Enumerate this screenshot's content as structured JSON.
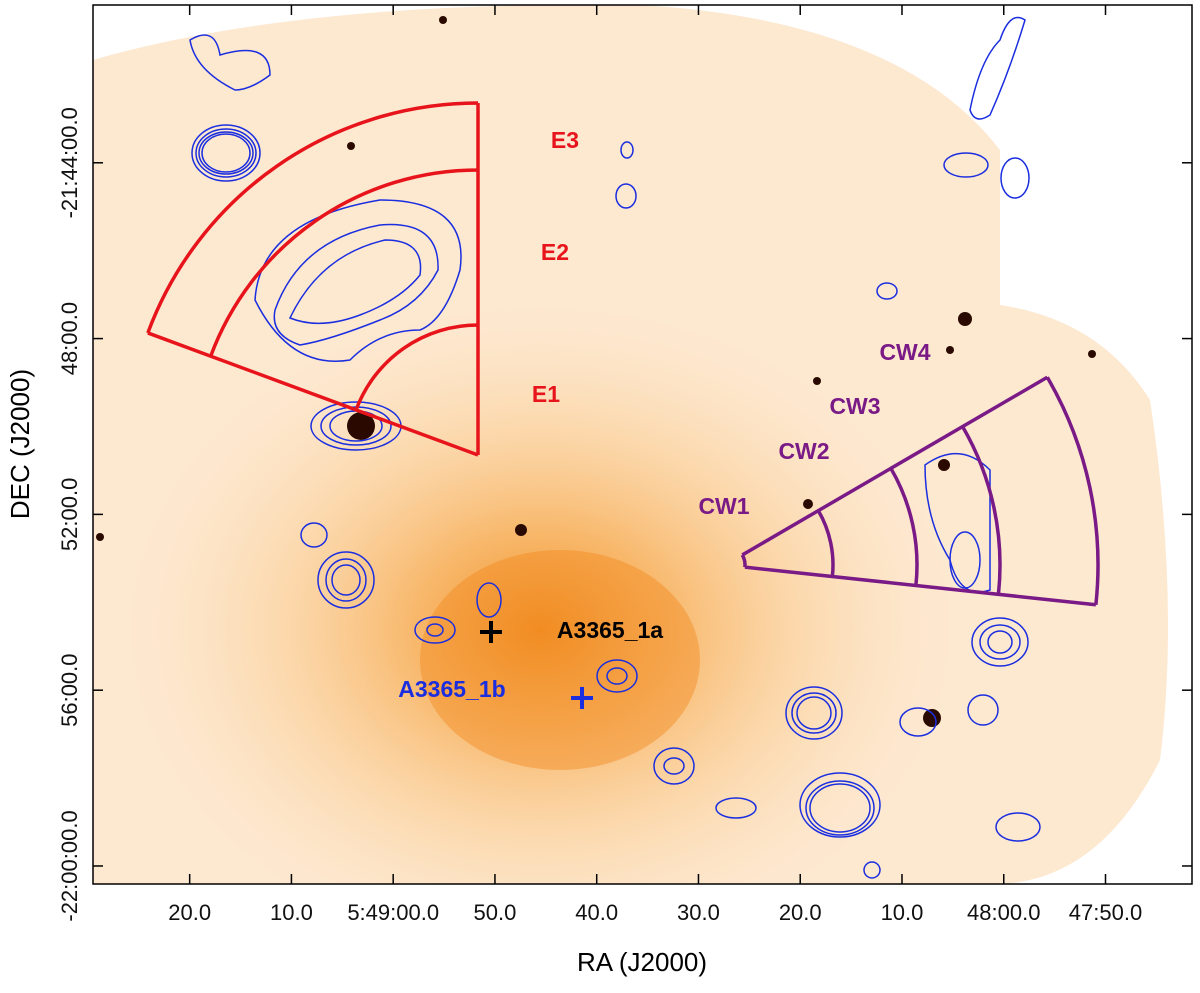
{
  "chart_data": {
    "type": "image",
    "xlabel": "RA (J2000)",
    "ylabel": "DEC (J2000)",
    "xlim": [
      20969.5,
      20861.5
    ],
    "ylim": [
      -1320.41,
      -1300.41
    ],
    "xticks": [
      {
        "value": 20960,
        "label": "20.0"
      },
      {
        "value": 20950,
        "label": "10.0"
      },
      {
        "value": 20940,
        "label": "5:49:00.0"
      },
      {
        "value": 20930,
        "label": "50.0"
      },
      {
        "value": 20920,
        "label": "40.0"
      },
      {
        "value": 20910,
        "label": "30.0"
      },
      {
        "value": 20900,
        "label": "20.0"
      },
      {
        "value": 20890,
        "label": "10.0"
      },
      {
        "value": 20880,
        "label": "48:00.0"
      },
      {
        "value": 20870,
        "label": "47:50.0"
      }
    ],
    "yticks": [
      {
        "value": -1304,
        "label": "-21:44:00.0"
      },
      {
        "value": -1308,
        "label": "48:00.0"
      },
      {
        "value": -1312,
        "label": "52:00.0"
      },
      {
        "value": -1316,
        "label": "56:00.0"
      },
      {
        "value": -1320,
        "label": "-22:00:00.0"
      }
    ],
    "annotations": [
      {
        "text": "E3",
        "color": "#e8141b"
      },
      {
        "text": "E2",
        "color": "#e8141b"
      },
      {
        "text": "E1",
        "color": "#e8141b"
      },
      {
        "text": "CW4",
        "color": "#7a1a86"
      },
      {
        "text": "CW3",
        "color": "#7a1a86"
      },
      {
        "text": "CW2",
        "color": "#7a1a86"
      },
      {
        "text": "CW1",
        "color": "#7a1a86"
      },
      {
        "text": "A3365_1a",
        "color": "#000000"
      },
      {
        "text": "A3365_1b",
        "color": "#1a2ee0"
      }
    ]
  }
}
